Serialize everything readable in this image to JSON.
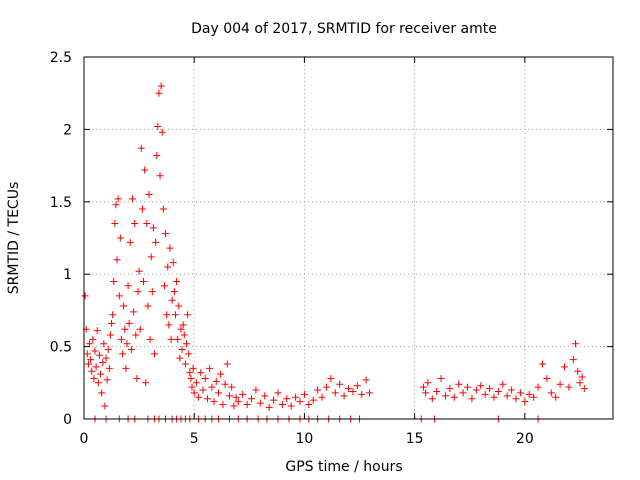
{
  "chart_data": {
    "type": "scatter",
    "title": "Day 004 of 2017, SRMTID for receiver amte",
    "xlabel": "GPS time / hours",
    "ylabel": "SRMTID / TECUs",
    "xlim": [
      0,
      24
    ],
    "ylim": [
      0,
      2.5
    ],
    "xticks": [
      0,
      5,
      10,
      15,
      20
    ],
    "xtick_labels": [
      "0",
      "5",
      "10",
      "15",
      "20"
    ],
    "yticks": [
      0,
      0.5,
      1,
      1.5,
      2,
      2.5
    ],
    "ytick_labels": [
      "0",
      "0.5",
      "1",
      "1.5",
      "2",
      "2.5"
    ],
    "grid": true,
    "marker": "+",
    "color": "#ff0000",
    "series": [
      {
        "name": "SRMTID",
        "points": [
          [
            0.05,
            0.85
          ],
          [
            0.1,
            0.62
          ],
          [
            0.15,
            0.45
          ],
          [
            0.2,
            0.38
          ],
          [
            0.25,
            0.52
          ],
          [
            0.3,
            0.41
          ],
          [
            0.35,
            0.33
          ],
          [
            0.4,
            0.55
          ],
          [
            0.45,
            0.28
          ],
          [
            0.5,
            0.47
          ],
          [
            0.55,
            0.36
          ],
          [
            0.6,
            0.61
          ],
          [
            0.65,
            0.25
          ],
          [
            0.7,
            0.44
          ],
          [
            0.75,
            0.31
          ],
          [
            0.8,
            0.18
          ],
          [
            0.85,
            0.39
          ],
          [
            0.9,
            0.52
          ],
          [
            0.95,
            0.09
          ],
          [
            1.0,
            0.42
          ],
          [
            1.05,
            0.27
          ],
          [
            1.1,
            0.48
          ],
          [
            1.15,
            0.35
          ],
          [
            1.2,
            0.58
          ],
          [
            1.25,
            0.66
          ],
          [
            1.3,
            0.72
          ],
          [
            1.35,
            0.95
          ],
          [
            1.4,
            1.35
          ],
          [
            1.45,
            1.48
          ],
          [
            1.5,
            1.1
          ],
          [
            1.55,
            1.52
          ],
          [
            1.6,
            0.85
          ],
          [
            1.65,
            1.25
          ],
          [
            1.7,
            0.55
          ],
          [
            1.75,
            0.45
          ],
          [
            1.8,
            0.78
          ],
          [
            1.85,
            0.62
          ],
          [
            1.9,
            0.35
          ],
          [
            1.95,
            0.52
          ],
          [
            2.0,
            0.92
          ],
          [
            2.05,
            0.66
          ],
          [
            2.1,
            1.22
          ],
          [
            2.15,
            0.48
          ],
          [
            2.2,
            1.52
          ],
          [
            2.25,
            0.74
          ],
          [
            2.3,
            1.35
          ],
          [
            2.35,
            0.58
          ],
          [
            2.4,
            0.28
          ],
          [
            2.45,
            0.88
          ],
          [
            2.5,
            1.02
          ],
          [
            2.55,
            0.62
          ],
          [
            2.6,
            1.87
          ],
          [
            2.65,
            1.45
          ],
          [
            2.7,
            0.95
          ],
          [
            2.75,
            1.72
          ],
          [
            2.8,
            0.25
          ],
          [
            2.85,
            1.35
          ],
          [
            2.9,
            0.78
          ],
          [
            2.95,
            1.55
          ],
          [
            3.0,
            0.55
          ],
          [
            3.05,
            1.12
          ],
          [
            3.1,
            0.88
          ],
          [
            3.15,
            1.32
          ],
          [
            3.2,
            0.45
          ],
          [
            3.25,
            1.22
          ],
          [
            3.3,
            1.82
          ],
          [
            3.35,
            2.02
          ],
          [
            3.4,
            2.25
          ],
          [
            3.45,
            1.68
          ],
          [
            3.5,
            2.3
          ],
          [
            3.55,
            1.98
          ],
          [
            3.6,
            1.45
          ],
          [
            3.65,
            0.92
          ],
          [
            3.7,
            1.28
          ],
          [
            3.75,
            0.72
          ],
          [
            3.8,
            1.05
          ],
          [
            3.85,
            0.65
          ],
          [
            3.9,
            1.18
          ],
          [
            3.95,
            0.55
          ],
          [
            4.0,
            0.82
          ],
          [
            4.05,
            1.08
          ],
          [
            4.1,
            0.88
          ],
          [
            4.15,
            0.72
          ],
          [
            4.2,
            0.95
          ],
          [
            4.25,
            0.55
          ],
          [
            4.3,
            0.78
          ],
          [
            4.35,
            0.42
          ],
          [
            4.4,
            0.62
          ],
          [
            4.45,
            0.48
          ],
          [
            4.5,
            0.65
          ],
          [
            4.55,
            0.58
          ],
          [
            4.6,
            0.38
          ],
          [
            4.65,
            0.52
          ],
          [
            4.7,
            0.72
          ],
          [
            4.75,
            0.45
          ],
          [
            4.8,
            0.32
          ],
          [
            4.85,
            0.28
          ],
          [
            4.9,
            0.22
          ],
          [
            4.95,
            0.35
          ],
          [
            5.0,
            0.18
          ],
          [
            5.1,
            0.25
          ],
          [
            5.2,
            0.15
          ],
          [
            5.3,
            0.32
          ],
          [
            5.4,
            0.2
          ],
          [
            5.5,
            0.28
          ],
          [
            5.6,
            0.14
          ],
          [
            5.7,
            0.35
          ],
          [
            5.8,
            0.22
          ],
          [
            5.9,
            0.12
          ],
          [
            6.0,
            0.26
          ],
          [
            6.1,
            0.18
          ],
          [
            6.2,
            0.31
          ],
          [
            6.3,
            0.1
          ],
          [
            6.4,
            0.24
          ],
          [
            6.5,
            0.38
          ],
          [
            6.6,
            0.16
          ],
          [
            6.7,
            0.22
          ],
          [
            6.8,
            0.09
          ],
          [
            6.9,
            0.15
          ],
          [
            7.0,
            0.12
          ],
          [
            7.2,
            0.17
          ],
          [
            7.4,
            0.1
          ],
          [
            7.6,
            0.14
          ],
          [
            7.8,
            0.2
          ],
          [
            8.0,
            0.11
          ],
          [
            8.2,
            0.16
          ],
          [
            8.4,
            0.08
          ],
          [
            8.6,
            0.13
          ],
          [
            8.8,
            0.18
          ],
          [
            9.0,
            0.1
          ],
          [
            9.2,
            0.14
          ],
          [
            9.4,
            0.09
          ],
          [
            9.6,
            0.15
          ],
          [
            9.8,
            0.12
          ],
          [
            10.0,
            0.17
          ],
          [
            10.2,
            0.1
          ],
          [
            10.4,
            0.13
          ],
          [
            10.6,
            0.2
          ],
          [
            10.8,
            0.15
          ],
          [
            11.0,
            0.22
          ],
          [
            11.2,
            0.28
          ],
          [
            11.4,
            0.18
          ],
          [
            11.6,
            0.24
          ],
          [
            11.8,
            0.16
          ],
          [
            12.0,
            0.21
          ],
          [
            12.2,
            0.19
          ],
          [
            12.4,
            0.23
          ],
          [
            12.6,
            0.17
          ],
          [
            12.8,
            0.27
          ],
          [
            12.95,
            0.18
          ],
          [
            15.4,
            0.22
          ],
          [
            15.5,
            0.18
          ],
          [
            15.6,
            0.25
          ],
          [
            15.8,
            0.14
          ],
          [
            16.0,
            0.19
          ],
          [
            16.2,
            0.28
          ],
          [
            16.4,
            0.16
          ],
          [
            16.6,
            0.21
          ],
          [
            16.8,
            0.15
          ],
          [
            17.0,
            0.24
          ],
          [
            17.2,
            0.18
          ],
          [
            17.4,
            0.22
          ],
          [
            17.6,
            0.14
          ],
          [
            17.8,
            0.2
          ],
          [
            18.0,
            0.23
          ],
          [
            18.2,
            0.17
          ],
          [
            18.4,
            0.21
          ],
          [
            18.6,
            0.15
          ],
          [
            18.8,
            0.19
          ],
          [
            19.0,
            0.24
          ],
          [
            19.2,
            0.16
          ],
          [
            19.4,
            0.2
          ],
          [
            19.6,
            0.14
          ],
          [
            19.8,
            0.18
          ],
          [
            20.0,
            0.12
          ],
          [
            20.2,
            0.17
          ],
          [
            20.4,
            0.15
          ],
          [
            20.6,
            0.22
          ],
          [
            20.8,
            0.38
          ],
          [
            21.0,
            0.28
          ],
          [
            21.2,
            0.18
          ],
          [
            21.4,
            0.15
          ],
          [
            21.6,
            0.24
          ],
          [
            21.8,
            0.36
          ],
          [
            22.0,
            0.22
          ],
          [
            22.2,
            0.41
          ],
          [
            22.3,
            0.52
          ],
          [
            22.4,
            0.33
          ],
          [
            22.5,
            0.25
          ],
          [
            22.6,
            0.29
          ],
          [
            22.7,
            0.21
          ]
        ]
      }
    ],
    "zero_points_x": [
      0.5,
      1.0,
      1.6,
      2.0,
      2.3,
      2.9,
      3.2,
      3.4,
      3.7,
      4.0,
      4.2,
      4.4,
      4.6,
      4.8,
      5.2,
      5.5,
      5.8,
      6.1,
      6.6,
      7.0,
      7.4,
      7.9,
      8.3,
      8.8,
      9.3,
      9.8,
      10.2,
      10.6,
      11.1,
      11.6,
      12.1,
      12.5,
      15.3,
      15.9,
      18.8,
      20.6
    ]
  }
}
